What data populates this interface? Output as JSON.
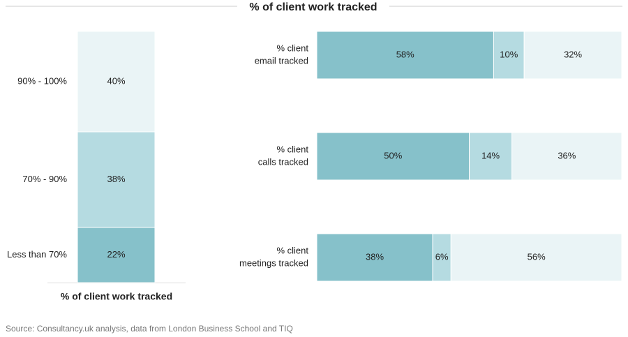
{
  "title": "% of client work tracked",
  "source": "Source: Consultancy.uk analysis, data from London Business School and TIQ",
  "chart_data": [
    {
      "type": "bar",
      "orientation": "vertical",
      "stacked": true,
      "categories": [
        "Less than 70%",
        "70% - 90%",
        "90% - 100%"
      ],
      "values": [
        22,
        38,
        40
      ],
      "value_labels": [
        "22%",
        "38%",
        "40%"
      ],
      "colors": [
        "#86c1ca",
        "#b5dbe1",
        "#eaf4f6"
      ],
      "xlabel": "% of client work tracked"
    },
    {
      "type": "bar",
      "orientation": "horizontal",
      "stacked": true,
      "categories": [
        [
          "% client",
          "email tracked"
        ],
        [
          "% client",
          "calls tracked"
        ],
        [
          "% client",
          "meetings tracked"
        ]
      ],
      "series": [
        {
          "color": "#86c1ca",
          "values": [
            58,
            50,
            38
          ],
          "value_labels": [
            "58%",
            "50%",
            "38%"
          ]
        },
        {
          "color": "#b5dbe1",
          "values": [
            10,
            14,
            6
          ],
          "value_labels": [
            "10%",
            "14%",
            "6%"
          ]
        },
        {
          "color": "#eaf4f6",
          "values": [
            32,
            36,
            56
          ],
          "value_labels": [
            "32%",
            "36%",
            "56%"
          ]
        }
      ]
    }
  ]
}
